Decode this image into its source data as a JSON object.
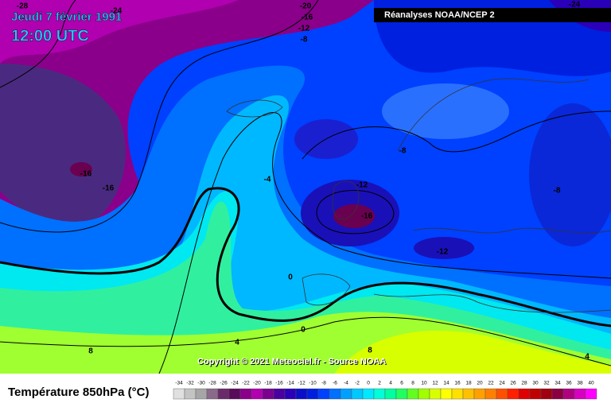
{
  "header": {
    "date": "Jeudi 7 février 1991",
    "time": "12:00 UTC",
    "source_box": "Réanalyses NOAA/NCEP 2"
  },
  "map": {
    "copyright": "Copyright © 2021 Meteociel.fr - Source NOAA",
    "contour_labels": [
      "-28",
      "-24",
      "-20",
      "-16",
      "-12",
      "-8",
      "-24",
      "-16",
      "-16",
      "-4",
      "-12",
      "-16",
      "-8",
      "-8",
      "-12",
      "0",
      "0",
      "4",
      "8",
      "8",
      "4"
    ]
  },
  "legend": {
    "title": "Température 850hPa (°C)",
    "items": [
      {
        "label": -34,
        "color": "#e0e0e0"
      },
      {
        "label": -32,
        "color": "#c4c4c4"
      },
      {
        "label": -30,
        "color": "#a6a6a6"
      },
      {
        "label": -28,
        "color": "#8a6a8a"
      },
      {
        "label": -26,
        "color": "#6a2a6a"
      },
      {
        "label": -24,
        "color": "#5a0a5a"
      },
      {
        "label": -22,
        "color": "#8a008a"
      },
      {
        "label": -20,
        "color": "#b000b0"
      },
      {
        "label": -18,
        "color": "#7a0090"
      },
      {
        "label": -16,
        "color": "#4a00a0"
      },
      {
        "label": -14,
        "color": "#2a00b8"
      },
      {
        "label": -12,
        "color": "#0a10c8"
      },
      {
        "label": -10,
        "color": "#0020e0"
      },
      {
        "label": -8,
        "color": "#0040ff"
      },
      {
        "label": -6,
        "color": "#0070ff"
      },
      {
        "label": -4,
        "color": "#00a0ff"
      },
      {
        "label": -2,
        "color": "#00c8ff"
      },
      {
        "label": 0,
        "color": "#00e8ff"
      },
      {
        "label": 2,
        "color": "#00ffd8"
      },
      {
        "label": 4,
        "color": "#00ffa0"
      },
      {
        "label": 6,
        "color": "#20ff60"
      },
      {
        "label": 8,
        "color": "#60ff20"
      },
      {
        "label": 10,
        "color": "#a0ff00"
      },
      {
        "label": 12,
        "color": "#d8ff00"
      },
      {
        "label": 14,
        "color": "#ffff00"
      },
      {
        "label": 16,
        "color": "#ffe000"
      },
      {
        "label": 18,
        "color": "#ffc000"
      },
      {
        "label": 20,
        "color": "#ffa000"
      },
      {
        "label": 22,
        "color": "#ff8000"
      },
      {
        "label": 24,
        "color": "#ff5000"
      },
      {
        "label": 26,
        "color": "#ff2000"
      },
      {
        "label": 28,
        "color": "#e00000"
      },
      {
        "label": 30,
        "color": "#c00000"
      },
      {
        "label": 32,
        "color": "#a00010"
      },
      {
        "label": 34,
        "color": "#8a0040"
      },
      {
        "label": 36,
        "color": "#b00080"
      },
      {
        "label": 38,
        "color": "#d800c0"
      },
      {
        "label": 40,
        "color": "#ff00ff"
      }
    ]
  }
}
